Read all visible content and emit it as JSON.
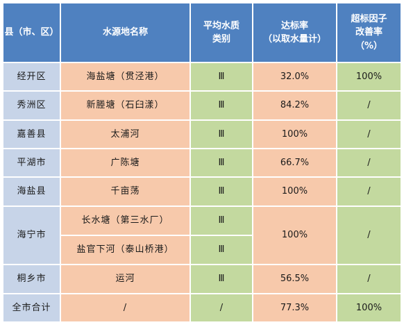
{
  "headers": {
    "district": "县（市、区）",
    "source": "水源地名称",
    "quality": [
      "平均水质",
      "类别"
    ],
    "rate": [
      "达标率",
      "（以取水量计）"
    ],
    "improve": [
      "超标因子",
      "改善率",
      "（%）"
    ]
  },
  "rows": [
    {
      "district": "经开区",
      "sources": [
        {
          "name": "海盐塘（贯泾港）",
          "class": "Ⅲ"
        }
      ],
      "rate": "32.0%",
      "improve": "100%"
    },
    {
      "district": "秀洲区",
      "sources": [
        {
          "name": "新塍塘（石臼漾）",
          "class": "Ⅲ"
        }
      ],
      "rate": "84.2%",
      "improve": "/"
    },
    {
      "district": "嘉善县",
      "sources": [
        {
          "name": "太浦河",
          "class": "Ⅲ"
        }
      ],
      "rate": "100%",
      "improve": "/"
    },
    {
      "district": "平湖市",
      "sources": [
        {
          "name": "广陈塘",
          "class": "Ⅲ"
        }
      ],
      "rate": "66.7%",
      "improve": "/"
    },
    {
      "district": "海盐县",
      "sources": [
        {
          "name": "千亩荡",
          "class": "Ⅲ"
        }
      ],
      "rate": "100%",
      "improve": "/"
    },
    {
      "district": "海宁市",
      "sources": [
        {
          "name": "长水塘（第三水厂）",
          "class": "Ⅲ"
        },
        {
          "name": "盐官下河（泰山桥港）",
          "class": "Ⅲ"
        }
      ],
      "rate": "100%",
      "improve": "/"
    },
    {
      "district": "桐乡市",
      "sources": [
        {
          "name": "运河",
          "class": "Ⅲ"
        }
      ],
      "rate": "56.5%",
      "improve": "/"
    },
    {
      "district": "全市合计",
      "sources": [
        {
          "name": "/",
          "class": "/"
        }
      ],
      "rate": "77.3%",
      "improve": "100%"
    }
  ],
  "colors": {
    "header": "#4f81c0",
    "district": "#c7d4e8",
    "source": "#f7c9ab",
    "class": "#c3d99f",
    "rate": "#f7c9ab",
    "improve": "#c3d99f"
  }
}
